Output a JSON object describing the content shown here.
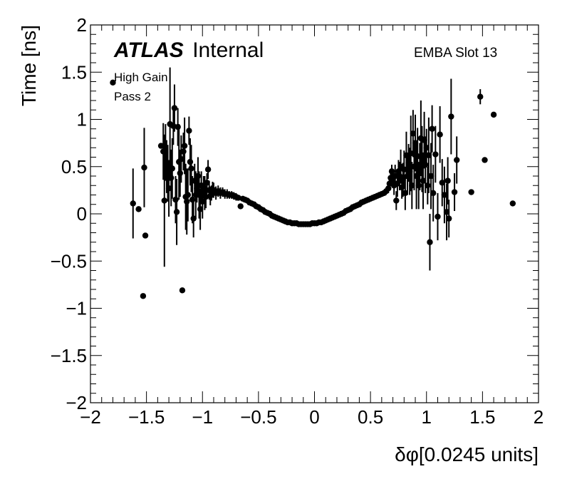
{
  "chart_data": {
    "type": "scatter",
    "xlabel": "δφ[0.0245 units]",
    "ylabel": "Time [ns]",
    "xlim": [
      -2,
      2
    ],
    "ylim": [
      -2,
      2
    ],
    "x_ticks": [
      -2,
      -1.5,
      -1,
      -0.5,
      0,
      0.5,
      1,
      1.5,
      2
    ],
    "y_ticks": [
      -2,
      -1.5,
      -1,
      -0.5,
      0,
      0.5,
      1,
      1.5,
      2
    ],
    "x_tick_labels": [
      "−2",
      "−1.5",
      "−1",
      "−0.5",
      "0",
      "0.5",
      "1",
      "1.5",
      "2"
    ],
    "y_tick_labels": [
      "−2",
      "−1.5",
      "−1",
      "−0.5",
      "0",
      "0.5",
      "1",
      "1.5",
      "2"
    ],
    "grid": false,
    "annotations": {
      "atlas": "ATLAS",
      "internal": "Internal",
      "gain": "High Gain",
      "pass": "Pass 2",
      "slot": "EMBA Slot 13"
    },
    "series": [
      {
        "points": [
          [
            -1.8,
            1.39,
            0.02
          ],
          [
            -1.62,
            0.11,
            0.37
          ],
          [
            -1.57,
            0.05,
            0.03
          ],
          [
            -1.53,
            -0.87,
            0.02
          ],
          [
            -1.52,
            0.49,
            0.42
          ],
          [
            -1.51,
            -0.23,
            0.02
          ],
          [
            -1.37,
            0.72,
            0.03
          ],
          [
            -1.35,
            0.66,
            0.3
          ],
          [
            -1.34,
            0.14,
            0.7
          ],
          [
            -1.33,
            0.65,
            0.3
          ],
          [
            -1.32,
            0.5,
            0.28
          ],
          [
            -1.31,
            0.43,
            0.3
          ],
          [
            -1.3,
            0.27,
            0.3
          ],
          [
            -1.29,
            0.95,
            0.6
          ],
          [
            -1.28,
            0.38,
            0.3
          ],
          [
            -1.27,
            0.48,
            0.32
          ],
          [
            -1.26,
            0.93,
            0.2
          ],
          [
            -1.25,
            1.12,
            0.25
          ],
          [
            -1.24,
            0.15,
            0.25
          ],
          [
            -1.23,
            0.02,
            0.35
          ],
          [
            -1.22,
            0.92,
            0.2
          ],
          [
            -1.21,
            0.55,
            0.4
          ],
          [
            -1.2,
            0.43,
            0.25
          ],
          [
            -1.19,
            0.58,
            0.25
          ],
          [
            -1.18,
            -0.81,
            0.02
          ],
          [
            -1.17,
            0.66,
            0.2
          ],
          [
            -1.16,
            0.72,
            0.3
          ],
          [
            -1.15,
            0.18,
            0.35
          ],
          [
            -1.14,
            0.13,
            0.35
          ],
          [
            -1.13,
            0.2,
            0.28
          ],
          [
            -1.12,
            0.88,
            0.15
          ],
          [
            -1.11,
            0.55,
            0.25
          ],
          [
            -1.1,
            0.48,
            0.25
          ],
          [
            -1.09,
            0.15,
            0.25
          ],
          [
            -1.08,
            -0.05,
            0.2
          ],
          [
            -1.07,
            0.35,
            0.18
          ],
          [
            -1.06,
            0.2,
            0.25
          ],
          [
            -1.05,
            0.27,
            0.15
          ],
          [
            -1.04,
            0.4,
            0.2
          ],
          [
            -1.03,
            0.2,
            0.25
          ],
          [
            -1.02,
            0.05,
            0.22
          ],
          [
            -1.01,
            0.3,
            0.15
          ],
          [
            -1.0,
            0.13,
            0.18
          ],
          [
            -0.99,
            0.28,
            0.12
          ],
          [
            -0.98,
            0.22,
            0.18
          ],
          [
            -0.97,
            0.18,
            0.12
          ],
          [
            -0.96,
            0.33,
            0.1
          ],
          [
            -0.95,
            0.47,
            0.1
          ],
          [
            -0.94,
            0.25,
            0.1
          ],
          [
            -0.93,
            0.19,
            0.1
          ],
          [
            -0.92,
            0.22,
            0.08
          ],
          [
            -0.91,
            0.26,
            0.08
          ],
          [
            -0.9,
            0.25,
            0.08
          ],
          [
            -0.88,
            0.22,
            0.07
          ],
          [
            -0.86,
            0.24,
            0.06
          ],
          [
            -0.84,
            0.22,
            0.06
          ],
          [
            -0.82,
            0.23,
            0.05
          ],
          [
            -0.8,
            0.21,
            0.05
          ],
          [
            -0.78,
            0.21,
            0.05
          ],
          [
            -0.76,
            0.2,
            0.04
          ],
          [
            -0.74,
            0.2,
            0.04
          ],
          [
            -0.72,
            0.19,
            0.04
          ],
          [
            -0.7,
            0.18,
            0.04
          ],
          [
            -0.68,
            0.17,
            0.03
          ],
          [
            -0.66,
            0.08,
            0.02
          ],
          [
            -0.64,
            0.16,
            0.03
          ],
          [
            -0.62,
            0.15,
            0.03
          ],
          [
            -0.6,
            0.14,
            0.03
          ],
          [
            -0.58,
            0.12,
            0.03
          ],
          [
            -0.56,
            0.11,
            0.03
          ],
          [
            -0.54,
            0.1,
            0.02
          ],
          [
            -0.52,
            0.08,
            0.02
          ],
          [
            -0.5,
            0.07,
            0.02
          ],
          [
            -0.48,
            0.05,
            0.02
          ],
          [
            -0.46,
            0.04,
            0.02
          ],
          [
            -0.44,
            0.02,
            0.02
          ],
          [
            -0.42,
            0.01,
            0.02
          ],
          [
            -0.4,
            0.0,
            0.02
          ],
          [
            -0.38,
            -0.02,
            0.02
          ],
          [
            -0.36,
            -0.03,
            0.02
          ],
          [
            -0.34,
            -0.04,
            0.02
          ],
          [
            -0.32,
            -0.05,
            0.02
          ],
          [
            -0.3,
            -0.06,
            0.02
          ],
          [
            -0.28,
            -0.07,
            0.02
          ],
          [
            -0.26,
            -0.08,
            0.02
          ],
          [
            -0.24,
            -0.09,
            0.02
          ],
          [
            -0.22,
            -0.09,
            0.02
          ],
          [
            -0.2,
            -0.1,
            0.02
          ],
          [
            -0.18,
            -0.1,
            0.02
          ],
          [
            -0.16,
            -0.1,
            0.02
          ],
          [
            -0.14,
            -0.11,
            0.02
          ],
          [
            -0.12,
            -0.11,
            0.02
          ],
          [
            -0.1,
            -0.11,
            0.02
          ],
          [
            -0.08,
            -0.11,
            0.02
          ],
          [
            -0.06,
            -0.11,
            0.02
          ],
          [
            -0.04,
            -0.11,
            0.02
          ],
          [
            -0.02,
            -0.1,
            0.02
          ],
          [
            0.0,
            -0.1,
            0.02
          ],
          [
            0.02,
            -0.1,
            0.02
          ],
          [
            0.04,
            -0.09,
            0.02
          ],
          [
            0.06,
            -0.09,
            0.02
          ],
          [
            0.08,
            -0.08,
            0.02
          ],
          [
            0.1,
            -0.07,
            0.02
          ],
          [
            0.12,
            -0.06,
            0.02
          ],
          [
            0.14,
            -0.05,
            0.02
          ],
          [
            0.16,
            -0.04,
            0.02
          ],
          [
            0.18,
            -0.03,
            0.02
          ],
          [
            0.2,
            -0.02,
            0.02
          ],
          [
            0.22,
            -0.01,
            0.02
          ],
          [
            0.24,
            0.0,
            0.02
          ],
          [
            0.26,
            0.01,
            0.02
          ],
          [
            0.28,
            0.03,
            0.02
          ],
          [
            0.3,
            0.04,
            0.02
          ],
          [
            0.32,
            0.05,
            0.02
          ],
          [
            0.34,
            0.07,
            0.02
          ],
          [
            0.36,
            0.08,
            0.02
          ],
          [
            0.38,
            0.09,
            0.02
          ],
          [
            0.4,
            0.1,
            0.02
          ],
          [
            0.42,
            0.12,
            0.02
          ],
          [
            0.44,
            0.13,
            0.02
          ],
          [
            0.46,
            0.14,
            0.02
          ],
          [
            0.48,
            0.15,
            0.02
          ],
          [
            0.5,
            0.16,
            0.02
          ],
          [
            0.52,
            0.17,
            0.02
          ],
          [
            0.54,
            0.18,
            0.02
          ],
          [
            0.56,
            0.19,
            0.02
          ],
          [
            0.58,
            0.2,
            0.02
          ],
          [
            0.6,
            0.21,
            0.03
          ],
          [
            0.62,
            0.22,
            0.03
          ],
          [
            0.64,
            0.24,
            0.04
          ],
          [
            0.66,
            0.27,
            0.05
          ],
          [
            0.67,
            0.32,
            0.06
          ],
          [
            0.68,
            0.38,
            0.06
          ],
          [
            0.69,
            0.45,
            0.07
          ],
          [
            0.7,
            0.36,
            0.08
          ],
          [
            0.71,
            0.3,
            0.1
          ],
          [
            0.72,
            0.4,
            0.12
          ],
          [
            0.73,
            0.14,
            0.1
          ],
          [
            0.74,
            0.32,
            0.14
          ],
          [
            0.75,
            0.45,
            0.12
          ],
          [
            0.76,
            0.4,
            0.15
          ],
          [
            0.77,
            0.5,
            0.18
          ],
          [
            0.78,
            0.28,
            0.12
          ],
          [
            0.79,
            0.36,
            0.18
          ],
          [
            0.8,
            0.47,
            0.2
          ],
          [
            0.81,
            0.22,
            0.18
          ],
          [
            0.82,
            0.62,
            0.25
          ],
          [
            0.83,
            0.4,
            0.2
          ],
          [
            0.84,
            0.54,
            0.2
          ],
          [
            0.85,
            0.45,
            0.25
          ],
          [
            0.86,
            0.64,
            0.4
          ],
          [
            0.87,
            0.3,
            0.25
          ],
          [
            0.88,
            0.85,
            0.25
          ],
          [
            0.89,
            0.5,
            0.25
          ],
          [
            0.9,
            0.75,
            0.3
          ],
          [
            0.91,
            0.4,
            0.35
          ],
          [
            0.92,
            0.61,
            0.3
          ],
          [
            0.93,
            0.3,
            0.25
          ],
          [
            0.94,
            0.5,
            0.25
          ],
          [
            0.95,
            0.8,
            0.4
          ],
          [
            0.96,
            0.58,
            0.35
          ],
          [
            0.97,
            0.35,
            0.3
          ],
          [
            0.98,
            0.78,
            0.3
          ],
          [
            0.99,
            0.52,
            0.3
          ],
          [
            1.0,
            0.7,
            0.2
          ],
          [
            1.01,
            0.3,
            0.2
          ],
          [
            1.02,
            0.62,
            0.4
          ],
          [
            1.03,
            -0.3,
            0.3
          ],
          [
            1.04,
            0.4,
            0.35
          ],
          [
            1.05,
            0.9,
            0.25
          ],
          [
            1.06,
            0.22,
            0.3
          ],
          [
            1.08,
            0.63,
            0.3
          ],
          [
            1.1,
            -0.03,
            0.25
          ],
          [
            1.12,
            0.84,
            0.3
          ],
          [
            1.14,
            0.33,
            0.25
          ],
          [
            1.16,
            0.2,
            0.3
          ],
          [
            1.18,
            0.02,
            0.3
          ],
          [
            1.19,
            0.35,
            0.25
          ],
          [
            1.2,
            -0.05,
            0.2
          ],
          [
            1.22,
            1.03,
            0.4
          ],
          [
            1.25,
            0.23,
            0.2
          ],
          [
            1.27,
            0.57,
            0.25
          ],
          [
            1.4,
            0.23,
            0.02
          ],
          [
            1.48,
            1.24,
            0.08
          ],
          [
            1.52,
            0.57,
            0.02
          ],
          [
            1.6,
            1.05,
            0.02
          ],
          [
            1.77,
            0.11,
            0.02
          ]
        ]
      }
    ]
  }
}
